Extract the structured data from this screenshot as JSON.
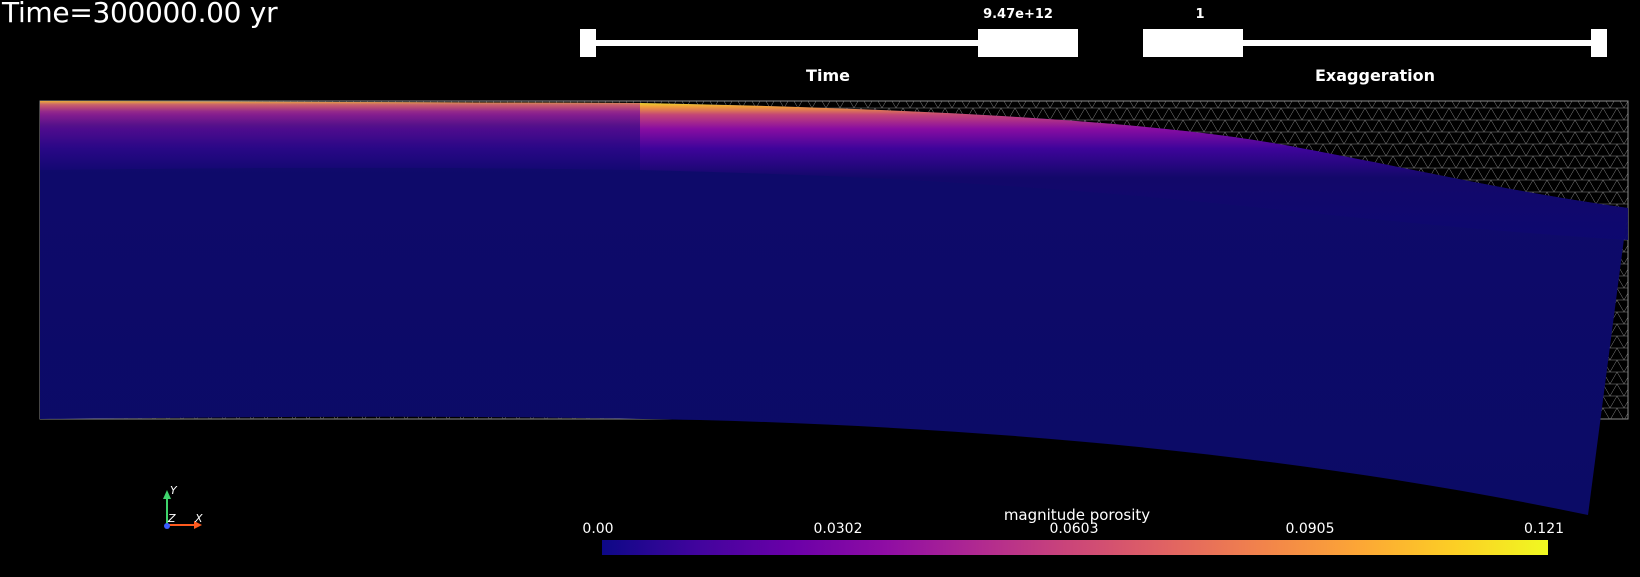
{
  "time_label": "Time=300000.00 yr",
  "time_slider": {
    "title": "Time",
    "value": "9.47e+12",
    "fraction": 0.9
  },
  "exaggeration_slider": {
    "title": "Exaggeration",
    "value": "1",
    "fraction": 0.1
  },
  "colorbar": {
    "title": "magnitude porosity",
    "ticks": [
      "0.00",
      "0.0302",
      "0.0603",
      "0.0905",
      "0.121"
    ],
    "colormap": "plasma"
  },
  "axes": {
    "y": "Y",
    "z": "Z",
    "x": "X"
  },
  "colors": {
    "background": "#000000",
    "mesh": "#9a9a9a",
    "slider": "#ffffff",
    "axis_x": "#ff5a1e",
    "axis_y": "#3fd46c",
    "axis_z": "#3a5bff"
  }
}
